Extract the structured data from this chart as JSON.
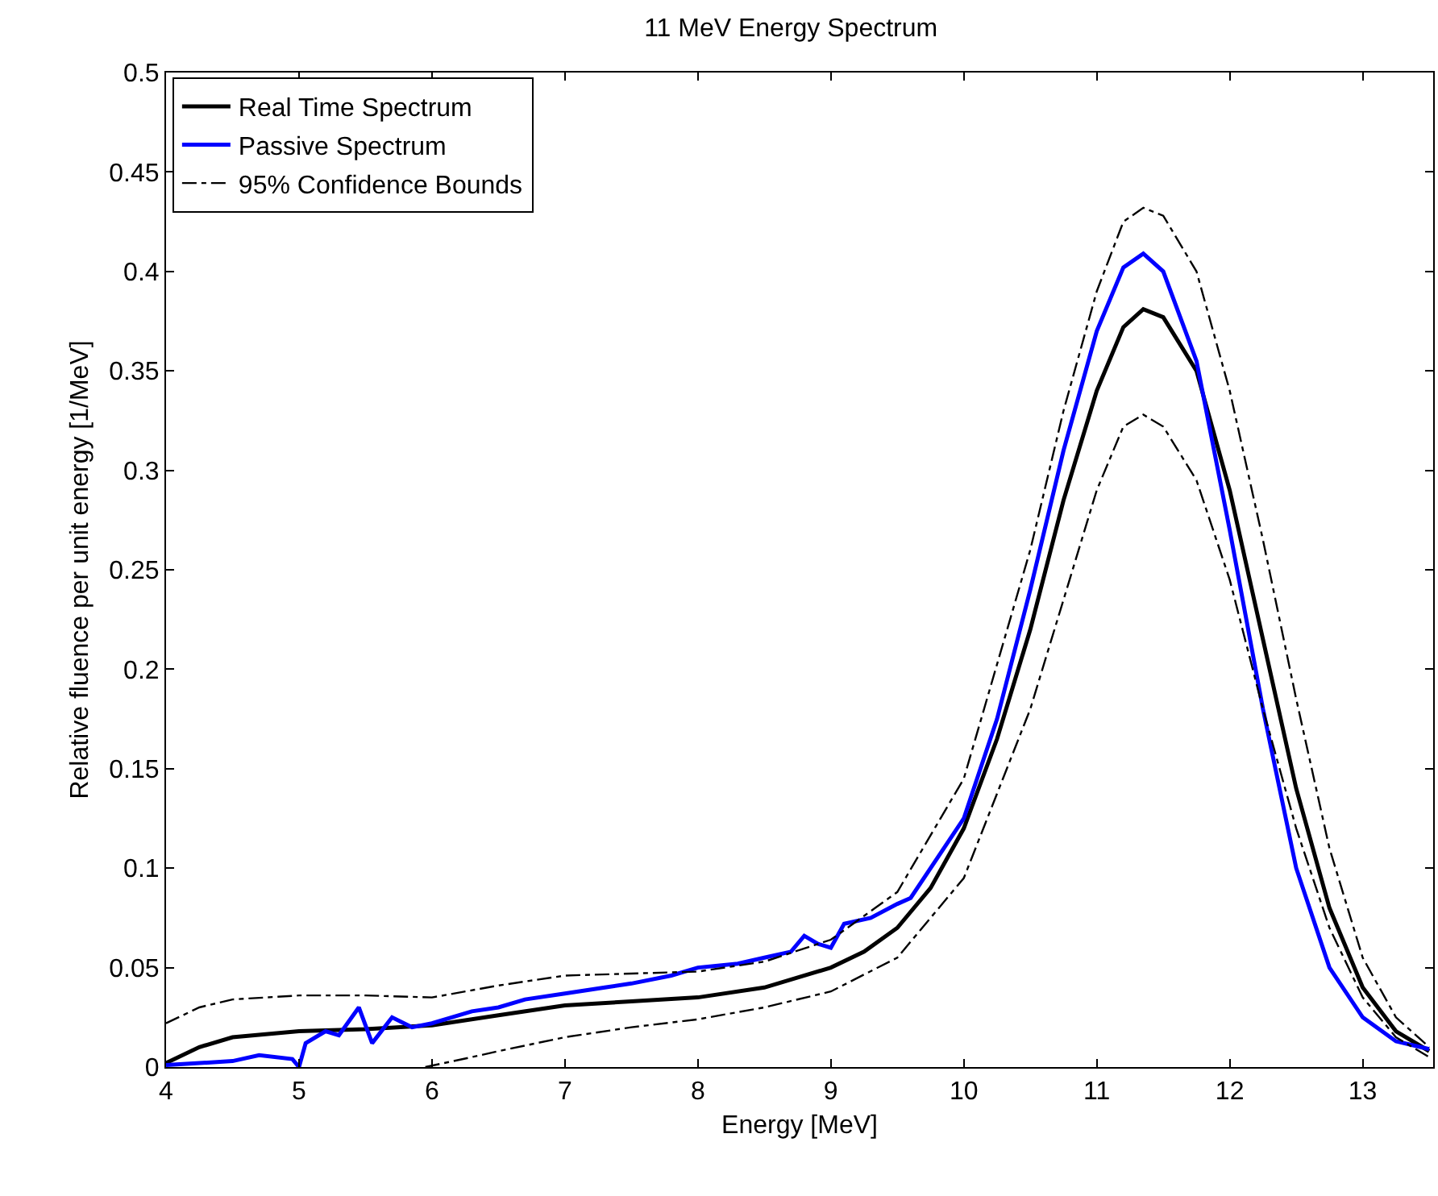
{
  "chart_data": {
    "type": "line",
    "title": "11 MeV Energy Spectrum",
    "xlabel": "Energy [MeV]",
    "ylabel": "Relative fluence per unit energy [1/MeV]",
    "xlim": [
      4,
      13.53
    ],
    "xticks": [
      4,
      5,
      6,
      7,
      8,
      9,
      10,
      11,
      12,
      13
    ],
    "ylim": [
      0,
      0.5
    ],
    "yticks": [
      0,
      0.05,
      0.1,
      0.15,
      0.2,
      0.25,
      0.3,
      0.35,
      0.4,
      0.45,
      0.5
    ],
    "legend": "top left",
    "marker": "none",
    "series": [
      {
        "name": "Real Time Spectrum",
        "color": "#000000",
        "line_style": "solid",
        "x": [
          4,
          4.25,
          4.5,
          5,
          5.5,
          6,
          6.5,
          7,
          7.5,
          8,
          8.5,
          9,
          9.25,
          9.5,
          9.75,
          10,
          10.25,
          10.5,
          10.75,
          11,
          11.2,
          11.35,
          11.5,
          11.75,
          12,
          12.25,
          12.5,
          12.75,
          13,
          13.25,
          13.5
        ],
        "values": [
          0.002,
          0.01,
          0.015,
          0.018,
          0.019,
          0.021,
          0.026,
          0.031,
          0.033,
          0.035,
          0.04,
          0.05,
          0.058,
          0.07,
          0.09,
          0.12,
          0.165,
          0.22,
          0.285,
          0.34,
          0.372,
          0.381,
          0.377,
          0.35,
          0.29,
          0.215,
          0.14,
          0.08,
          0.04,
          0.018,
          0.008
        ]
      },
      {
        "name": "Passive Spectrum",
        "color": "#0000ff",
        "line_style": "solid",
        "x": [
          4,
          4.5,
          4.7,
          4.95,
          5.0,
          5.05,
          5.2,
          5.3,
          5.45,
          5.55,
          5.7,
          5.85,
          6,
          6.3,
          6.5,
          6.7,
          7,
          7.3,
          7.5,
          7.8,
          8,
          8.3,
          8.5,
          8.7,
          8.8,
          8.9,
          9.0,
          9.1,
          9.3,
          9.5,
          9.6,
          9.8,
          10,
          10.25,
          10.5,
          10.75,
          11,
          11.2,
          11.35,
          11.5,
          11.75,
          12,
          12.25,
          12.5,
          12.75,
          13,
          13.25,
          13.5
        ],
        "values": [
          0.001,
          0.003,
          0.006,
          0.004,
          0.0,
          0.012,
          0.018,
          0.016,
          0.03,
          0.012,
          0.025,
          0.02,
          0.022,
          0.028,
          0.03,
          0.034,
          0.037,
          0.04,
          0.042,
          0.046,
          0.05,
          0.052,
          0.055,
          0.058,
          0.066,
          0.062,
          0.06,
          0.072,
          0.075,
          0.082,
          0.085,
          0.105,
          0.125,
          0.175,
          0.24,
          0.31,
          0.37,
          0.402,
          0.409,
          0.4,
          0.355,
          0.27,
          0.18,
          0.1,
          0.05,
          0.025,
          0.013,
          0.009
        ]
      },
      {
        "name": "95% Confidence Bounds",
        "color": "#000000",
        "line_style": "dashdot",
        "x": [
          4,
          4.25,
          4.5,
          5,
          5.5,
          6,
          6.5,
          7,
          7.5,
          8,
          8.5,
          9,
          9.5,
          10,
          10.5,
          10.75,
          11,
          11.2,
          11.35,
          11.5,
          11.75,
          12,
          12.25,
          12.5,
          12.75,
          13,
          13.25,
          13.5
        ],
        "values": [
          0.022,
          0.03,
          0.034,
          0.036,
          0.036,
          0.035,
          0.041,
          0.046,
          0.047,
          0.048,
          0.053,
          0.064,
          0.088,
          0.145,
          0.26,
          0.33,
          0.39,
          0.425,
          0.432,
          0.428,
          0.4,
          0.34,
          0.265,
          0.185,
          0.11,
          0.055,
          0.025,
          0.01
        ]
      },
      {
        "color": "#000000",
        "line_style": "dashdot",
        "x": [
          5.95,
          6.3,
          6.5,
          7,
          7.5,
          8,
          8.5,
          9,
          9.5,
          10,
          10.5,
          10.75,
          11,
          11.2,
          11.35,
          11.5,
          11.75,
          12,
          12.25,
          12.5,
          12.75,
          13,
          13.25,
          13.5
        ],
        "values": [
          0.0,
          0.005,
          0.008,
          0.015,
          0.02,
          0.024,
          0.03,
          0.038,
          0.055,
          0.095,
          0.18,
          0.235,
          0.29,
          0.322,
          0.328,
          0.322,
          0.295,
          0.245,
          0.18,
          0.12,
          0.07,
          0.035,
          0.015,
          0.005
        ]
      }
    ]
  }
}
